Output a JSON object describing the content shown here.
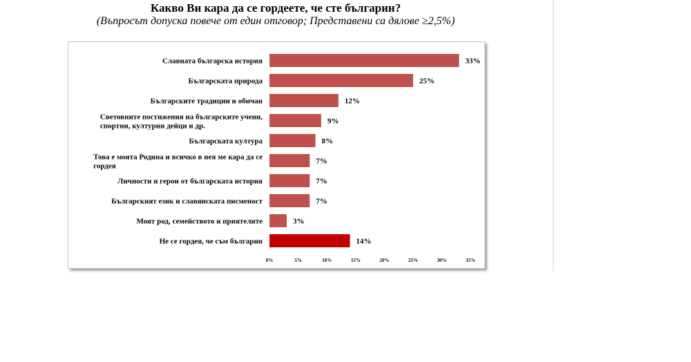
{
  "header": {
    "title": "Какво Ви кара да се гордеете, че сте българин?",
    "subtitle": "(Въпросът допуска повече от един отговор; Представени са дялове ≥2,5%)"
  },
  "chart_data": {
    "type": "bar",
    "orientation": "horizontal",
    "title": "Какво Ви кара да се гордеете, че сте българин?",
    "categories": [
      [
        "Славната българска история"
      ],
      [
        "Българската природа"
      ],
      [
        "Българските традиции и обичаи"
      ],
      [
        "Световните постижения на българските учени,",
        "спортни, културни дейци и др."
      ],
      [
        "Българската култура"
      ],
      [
        "Това е моята Родина и всичко в нея ме кара да се",
        "гордея"
      ],
      [
        "Личности и герои от българската история"
      ],
      [
        "Българският език и славянската писменост"
      ],
      [
        "Моят род, семейството и приятелите"
      ],
      [
        "Не се гордея, че съм българин"
      ]
    ],
    "values": [
      33,
      25,
      12,
      9,
      8,
      7,
      7,
      7,
      3,
      14
    ],
    "value_labels": [
      "33%",
      "25%",
      "12%",
      "9%",
      "8%",
      "7%",
      "7%",
      "7%",
      "3%",
      "14%"
    ],
    "bar_colors": [
      "#c0504d",
      "#c0504d",
      "#c0504d",
      "#c0504d",
      "#c0504d",
      "#c0504d",
      "#c0504d",
      "#c0504d",
      "#c0504d",
      "#c00000"
    ],
    "xlim": [
      0,
      35
    ],
    "xticks": [
      0,
      5,
      10,
      15,
      20,
      25,
      30,
      35
    ],
    "xtick_labels": [
      "0%",
      "5%",
      "10%",
      "15%",
      "20%",
      "25%",
      "30%",
      "35%"
    ],
    "grid": false,
    "legend": "none"
  }
}
